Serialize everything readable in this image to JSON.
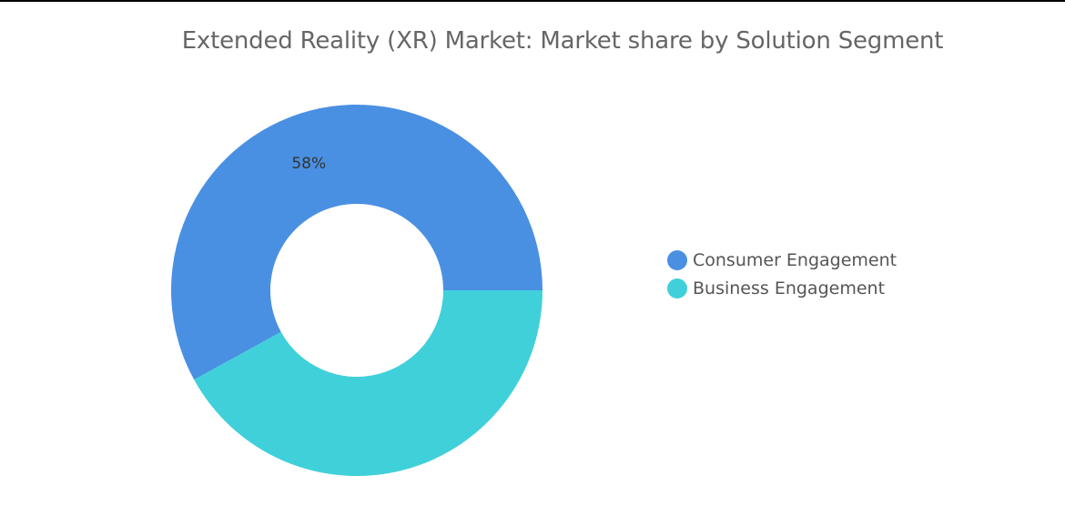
{
  "chart_data": {
    "type": "pie",
    "title": "Extended Reality (XR) Market: Market share by Solution Segment",
    "categories": [
      "Consumer Engagement",
      "Business Engagement"
    ],
    "values": [
      58,
      42
    ],
    "data_labels": [
      "58%",
      ""
    ],
    "colors": [
      "#4A90E2",
      "#40D0DA"
    ],
    "donut": true,
    "legend_position": "right"
  }
}
